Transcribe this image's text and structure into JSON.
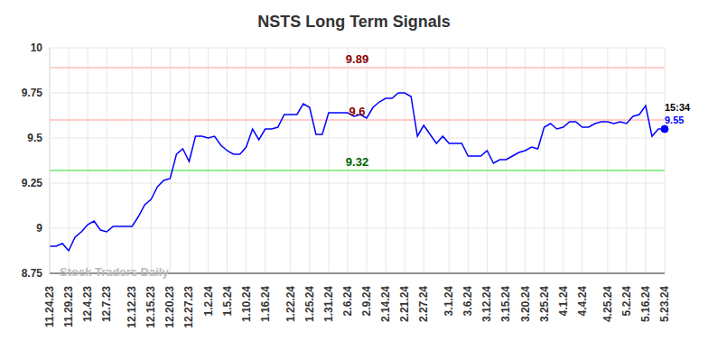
{
  "chart_data": {
    "type": "line",
    "title": "NSTS Long Term Signals",
    "watermark": "Stock Traders Daily",
    "time_label": "15:34",
    "color": "#0000ff",
    "grid": true,
    "ylim": [
      8.75,
      10
    ],
    "yticks": [
      8.75,
      9,
      9.25,
      9.5,
      9.75,
      10
    ],
    "reference_lines": [
      {
        "value": 9.89,
        "color": "#ffcccc",
        "label_color": "#8b0000"
      },
      {
        "value": 9.6,
        "color": "#ffcccc",
        "label_color": "#8b0000"
      },
      {
        "value": 9.32,
        "color": "#90ee90",
        "label_color": "#006400"
      }
    ],
    "categories": [
      "11.24.23",
      null,
      null,
      "11.29.23",
      null,
      null,
      "12.4.23",
      null,
      null,
      "12.7.23",
      null,
      null,
      null,
      "12.12.23",
      null,
      null,
      "12.15.23",
      null,
      null,
      "12.20.23",
      null,
      null,
      "12.27.23",
      null,
      null,
      "1.2.24",
      null,
      null,
      "1.5.24",
      null,
      null,
      "1.10.24",
      null,
      null,
      "1.16.24",
      null,
      null,
      null,
      "1.22.24",
      null,
      null,
      "1.25.24",
      null,
      null,
      "1.31.24",
      null,
      null,
      "2.6.24",
      null,
      null,
      "2.9.24",
      null,
      null,
      "2.14.24",
      null,
      null,
      "2.21.24",
      null,
      null,
      "2.27.24",
      null,
      null,
      null,
      "3.1.24",
      null,
      null,
      "3.6.24",
      null,
      null,
      "3.12.24",
      null,
      null,
      "3.15.24",
      null,
      null,
      "3.20.24",
      null,
      null,
      "3.25.24",
      null,
      null,
      "4.1.24",
      null,
      null,
      "4.4.24",
      null,
      null,
      null,
      "4.25.24",
      null,
      null,
      "5.2.24",
      null,
      null,
      "5.16.24",
      null,
      null,
      "5.23.24"
    ],
    "values": [
      8.9,
      8.9,
      8.915,
      8.875,
      8.95,
      8.98,
      9.02,
      9.04,
      8.99,
      8.98,
      9.01,
      9.01,
      9.01,
      9.01,
      9.065,
      9.13,
      9.16,
      9.23,
      9.265,
      9.275,
      9.41,
      9.44,
      9.37,
      9.51,
      9.51,
      9.5,
      9.51,
      9.46,
      9.43,
      9.41,
      9.41,
      9.45,
      9.55,
      9.49,
      9.55,
      9.55,
      9.56,
      9.63,
      9.63,
      9.63,
      9.69,
      9.67,
      9.52,
      9.52,
      9.64,
      9.64,
      9.64,
      9.64,
      9.62,
      9.63,
      9.61,
      9.67,
      9.7,
      9.72,
      9.72,
      9.75,
      9.75,
      9.73,
      9.51,
      9.57,
      9.52,
      9.47,
      9.51,
      9.47,
      9.47,
      9.47,
      9.4,
      9.4,
      9.4,
      9.43,
      9.36,
      9.38,
      9.38,
      9.4,
      9.42,
      9.43,
      9.45,
      9.44,
      9.56,
      9.58,
      9.55,
      9.56,
      9.59,
      9.59,
      9.56,
      9.56,
      9.58,
      9.59,
      9.59,
      9.58,
      9.59,
      9.58,
      9.62,
      9.63,
      9.68,
      9.51,
      9.55,
      9.55
    ]
  }
}
